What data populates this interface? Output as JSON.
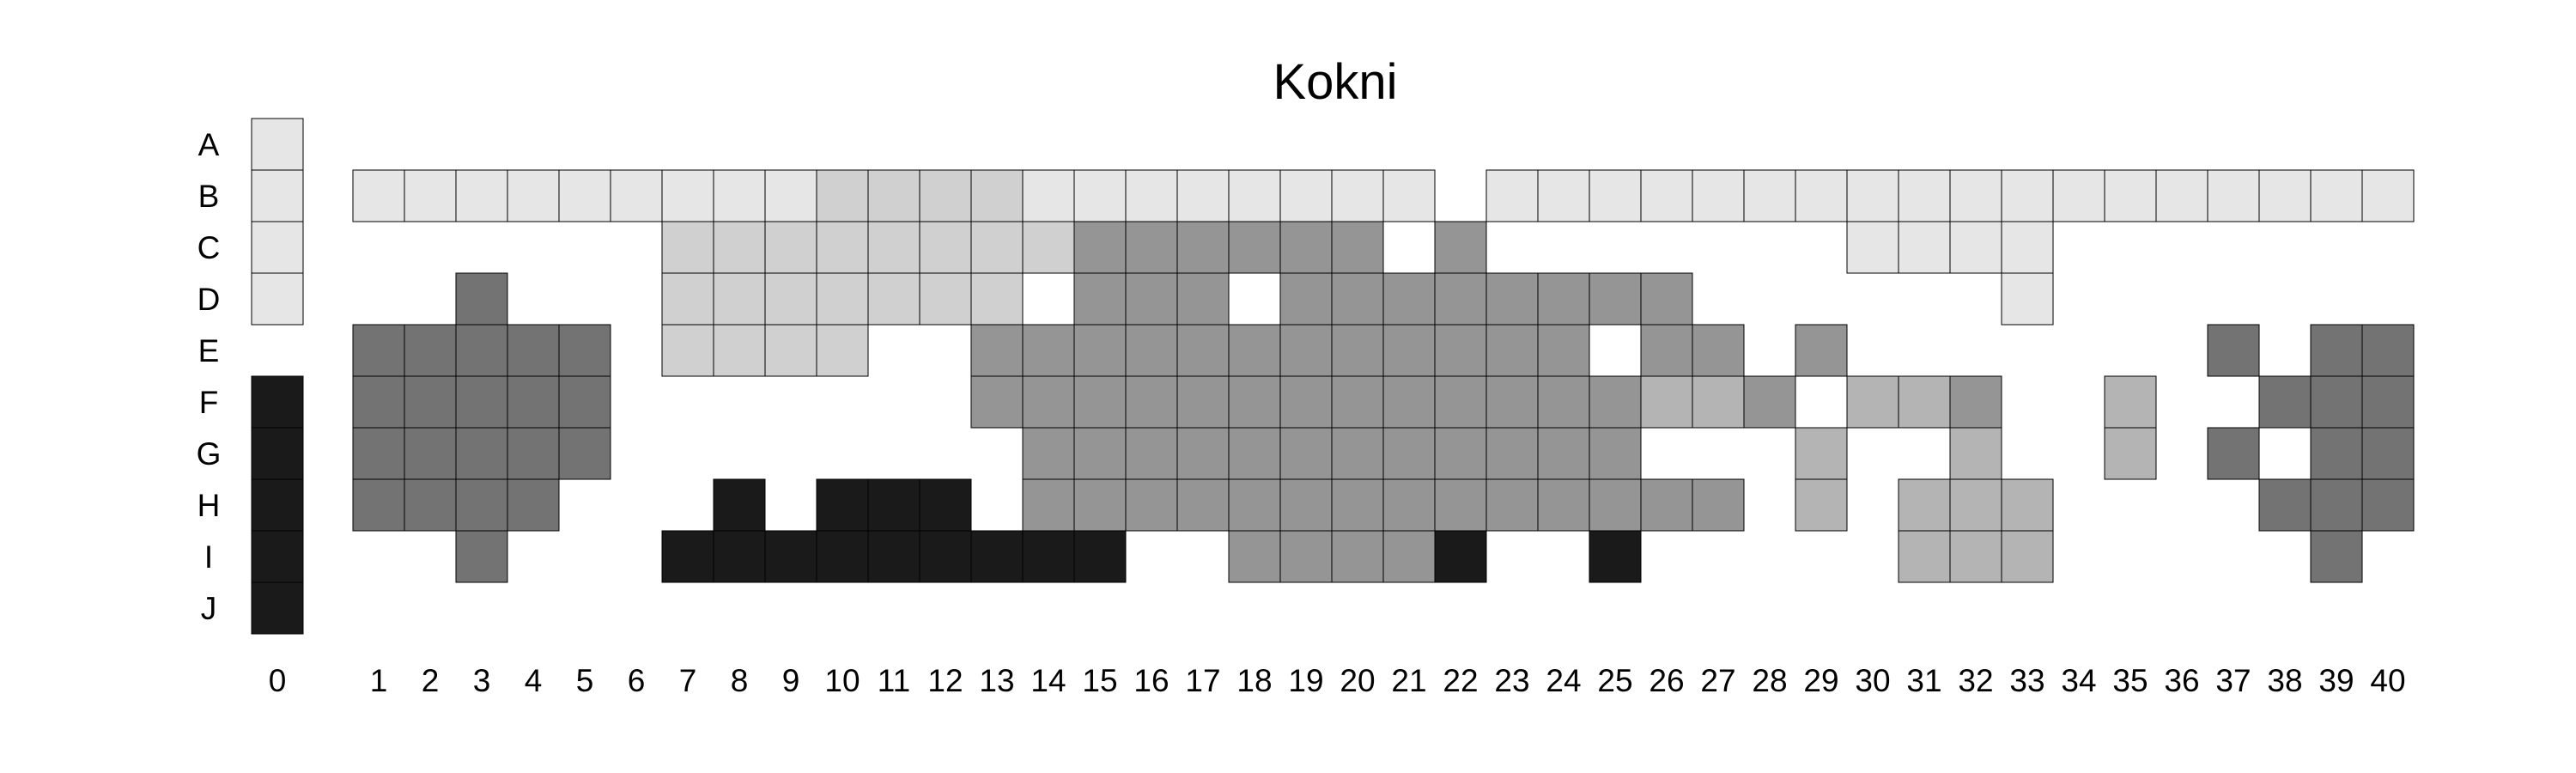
{
  "chart_data": {
    "type": "heatmap",
    "title": "Kokni",
    "rows": [
      "A",
      "B",
      "C",
      "D",
      "E",
      "F",
      "G",
      "H",
      "I",
      "J"
    ],
    "columns": [
      "0",
      "1",
      "2",
      "3",
      "4",
      "5",
      "6",
      "7",
      "8",
      "9",
      "10",
      "11",
      "12",
      "13",
      "14",
      "15",
      "16",
      "17",
      "18",
      "19",
      "20",
      "21",
      "22",
      "23",
      "24",
      "25",
      "26",
      "27",
      "28",
      "29",
      "30",
      "31",
      "32",
      "33",
      "34",
      "35",
      "36",
      "37",
      "38",
      "39",
      "40"
    ],
    "colors": {
      "1": "#e6e6e6",
      "2": "#d0d0d0",
      "3": "#959595",
      "4": "#b4b4b4",
      "5": "#737373",
      "6": "#1a1a1a"
    },
    "grid": [
      "1........................................",
      "1111111111222211111111.111111111111111111",
      "1......22222222333333.3.......1111.......",
      "1..5...2222222.333.33333333......1.......",
      ".55555.2222..333333333333.33.3.......5.55",
      "655555.......3333333333333443.443..4..555",
      "655555........333333333333...4..4..4.5.55",
      "65555...6.666.33333333333333.4.444....555",
      "6..5...666666666..33336..6.....444.....5.",
      "6........................................"
    ]
  }
}
